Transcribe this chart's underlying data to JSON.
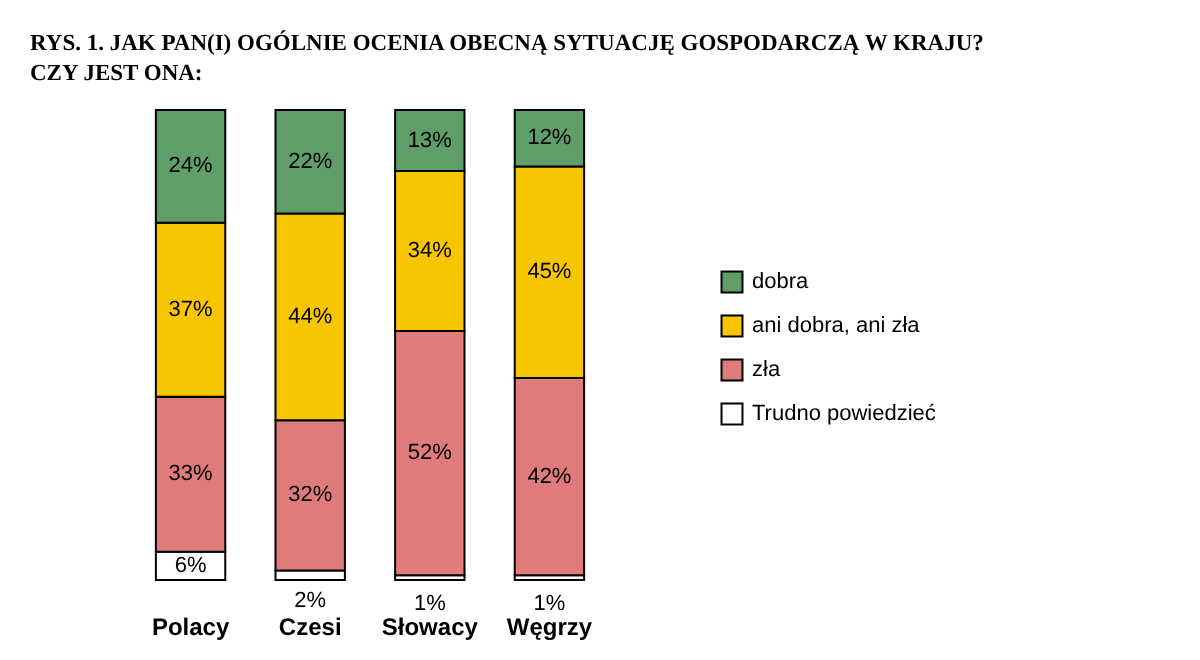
{
  "chart_data": {
    "type": "bar",
    "stacked": true,
    "title": "RYS. 1.   JAK PAN(I) OGÓLNIE OCENIA OBECNĄ SYTUACJĘ GOSPODARCZĄ W KRAJU?\nCZY JEST ONA:",
    "categories": [
      "Polacy",
      "Czesi",
      "Słowacy",
      "Węgrzy"
    ],
    "legend": "right",
    "series": [
      {
        "name": "Trudno powiedzieć",
        "color": "#ffffff",
        "values": [
          6,
          2,
          1,
          1
        ],
        "value_labels": [
          "6%",
          "2%",
          "1%",
          "1%"
        ]
      },
      {
        "name": "zła",
        "color": "#e07b7b",
        "values": [
          33,
          32,
          52,
          42
        ],
        "value_labels": [
          "33%",
          "32%",
          "52%",
          "42%"
        ]
      },
      {
        "name": "ani dobra, ani zła",
        "color": "#f7c600",
        "values": [
          37,
          44,
          34,
          45
        ],
        "value_labels": [
          "37%",
          "44%",
          "34%",
          "45%"
        ]
      },
      {
        "name": "dobra",
        "color": "#5f9e68",
        "values": [
          24,
          22,
          13,
          12
        ],
        "value_labels": [
          "24%",
          "22%",
          "13%",
          "12%"
        ]
      }
    ]
  }
}
